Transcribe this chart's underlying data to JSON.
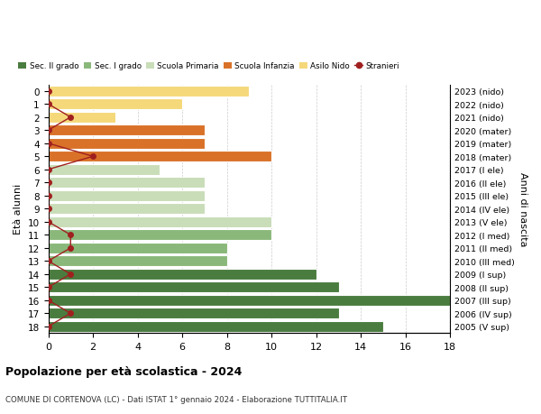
{
  "ages": [
    18,
    17,
    16,
    15,
    14,
    13,
    12,
    11,
    10,
    9,
    8,
    7,
    6,
    5,
    4,
    3,
    2,
    1,
    0
  ],
  "labels_right": [
    "2005 (V sup)",
    "2006 (IV sup)",
    "2007 (III sup)",
    "2008 (II sup)",
    "2009 (I sup)",
    "2010 (III med)",
    "2011 (II med)",
    "2012 (I med)",
    "2013 (V ele)",
    "2014 (IV ele)",
    "2015 (III ele)",
    "2016 (II ele)",
    "2017 (I ele)",
    "2018 (mater)",
    "2019 (mater)",
    "2020 (mater)",
    "2021 (nido)",
    "2022 (nido)",
    "2023 (nido)"
  ],
  "bar_values": [
    15,
    13,
    18,
    13,
    12,
    8,
    8,
    10,
    10,
    7,
    7,
    7,
    5,
    10,
    7,
    7,
    3,
    6,
    9
  ],
  "stranieri_values": [
    0,
    1,
    0,
    0,
    1,
    0,
    1,
    1,
    0,
    0,
    0,
    0,
    0,
    2,
    0,
    0,
    1,
    0,
    0
  ],
  "bar_colors": [
    "#4a7c3f",
    "#4a7c3f",
    "#4a7c3f",
    "#4a7c3f",
    "#4a7c3f",
    "#8ab87a",
    "#8ab87a",
    "#8ab87a",
    "#c8ddb8",
    "#c8ddb8",
    "#c8ddb8",
    "#c8ddb8",
    "#c8ddb8",
    "#d97228",
    "#d97228",
    "#d97228",
    "#f5d87a",
    "#f5d87a",
    "#f5d87a"
  ],
  "legend_labels": [
    "Sec. II grado",
    "Sec. I grado",
    "Scuola Primaria",
    "Scuola Infanzia",
    "Asilo Nido",
    "Stranieri"
  ],
  "legend_colors": [
    "#4a7c3f",
    "#8ab87a",
    "#c8ddb8",
    "#d97228",
    "#f5d87a",
    "#a02020"
  ],
  "title": "Popolazione per età scolastica - 2024",
  "subtitle": "COMUNE DI CORTENOVA (LC) - Dati ISTAT 1° gennaio 2024 - Elaborazione TUTTITALIA.IT",
  "ylabel": "Età alunni",
  "ylabel_right": "Anni di nascita",
  "xlim": [
    0,
    18
  ],
  "stranieri_color": "#a02020",
  "grid_color": "#cccccc"
}
